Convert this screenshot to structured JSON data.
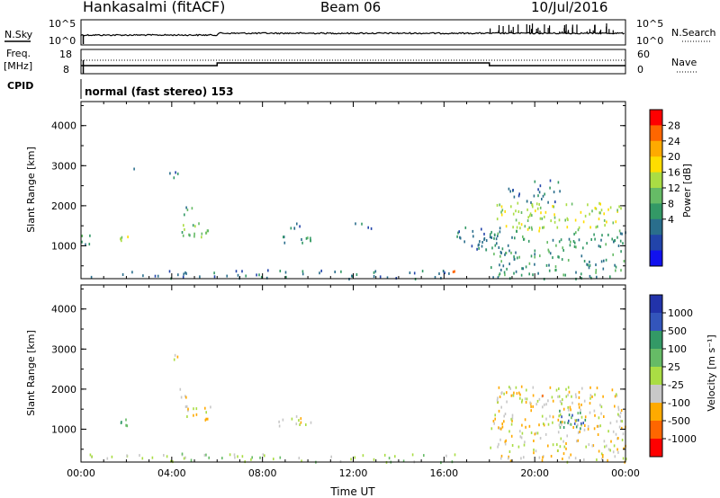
{
  "header": {
    "station": "Hankasalmi (fitACF)",
    "beam": "Beam 06",
    "date": "10/Jul/2016"
  },
  "status_panels": {
    "nsky_label": "N.Sky",
    "nsearch_label": "N.Search",
    "noise_ticks_left": [
      "10^5",
      "10^0"
    ],
    "noise_ticks_right": [
      "10^5",
      "10^0"
    ],
    "freq_label": "Freq.",
    "freq_unit": "[MHz]",
    "freq_ticks": [
      "18",
      "8"
    ],
    "nave_label": "Nave",
    "nave_ticks": [
      "60",
      "0"
    ],
    "cpid_label": "CPID",
    "cpid_value": "normal (fast stereo) 153"
  },
  "chart_data": [
    {
      "type": "heatmap",
      "name": "power",
      "ylabel": "Slant Range [km]",
      "ylim": [
        180,
        4600
      ],
      "y_ticks": [
        "4000",
        "3000",
        "2000",
        "1000"
      ],
      "xlim": [
        "00:00",
        "24:00"
      ],
      "colorbar": {
        "label": "Power [dB]",
        "ticks": [
          "28",
          "24",
          "20",
          "16",
          "12",
          "8",
          "4"
        ],
        "colors": [
          "#ff0000",
          "#ff6600",
          "#ffaa00",
          "#ffdd00",
          "#aadd44",
          "#66bb66",
          "#339966",
          "#2a6e8c",
          "#2244aa",
          "#1111ee"
        ]
      },
      "regions": [
        {
          "t0": 0.0,
          "t1": 16.5,
          "r0": 200,
          "r1": 420,
          "level": 7,
          "density": 0.35
        },
        {
          "t0": 0.0,
          "t1": 0.6,
          "r0": 1050,
          "r1": 1300,
          "level": 6,
          "density": 0.7
        },
        {
          "t0": 1.7,
          "t1": 2.1,
          "r0": 1000,
          "r1": 1350,
          "level": 4,
          "density": 0.8
        },
        {
          "t0": 2.3,
          "t1": 2.6,
          "r0": 2900,
          "r1": 3050,
          "level": 6,
          "density": 0.6
        },
        {
          "t0": 3.8,
          "t1": 4.3,
          "r0": 2700,
          "r1": 2950,
          "level": 7,
          "density": 0.7
        },
        {
          "t0": 4.4,
          "t1": 5.6,
          "r0": 1250,
          "r1": 1650,
          "level": 5,
          "density": 0.8
        },
        {
          "t0": 4.4,
          "t1": 5.1,
          "r0": 1800,
          "r1": 2000,
          "level": 6,
          "density": 0.7
        },
        {
          "t0": 8.7,
          "t1": 10.2,
          "r0": 1100,
          "r1": 1300,
          "level": 6,
          "density": 0.7
        },
        {
          "t0": 9.2,
          "t1": 10.2,
          "r0": 1450,
          "r1": 1650,
          "level": 7,
          "density": 0.6
        },
        {
          "t0": 12.0,
          "t1": 13.5,
          "r0": 1450,
          "r1": 1600,
          "level": 7,
          "density": 0.4
        },
        {
          "t0": 16.2,
          "t1": 16.5,
          "r0": 200,
          "r1": 400,
          "level": 0,
          "density": 0.9
        },
        {
          "t0": 16.5,
          "t1": 18.5,
          "r0": 900,
          "r1": 1500,
          "level": 7,
          "density": 0.6
        },
        {
          "t0": 18.0,
          "t1": 24.0,
          "r0": 200,
          "r1": 1400,
          "level": 6,
          "density": 0.45
        },
        {
          "t0": 18.3,
          "t1": 23.8,
          "r0": 1400,
          "r1": 2100,
          "level": 4,
          "density": 0.55
        },
        {
          "t0": 18.8,
          "t1": 21.2,
          "r0": 2100,
          "r1": 2700,
          "level": 7,
          "density": 0.4
        }
      ]
    },
    {
      "type": "heatmap",
      "name": "velocity",
      "ylabel": "Slant Range [km]",
      "xlabel": "Time UT",
      "ylim": [
        180,
        4600
      ],
      "y_ticks": [
        "4000",
        "3000",
        "2000",
        "1000"
      ],
      "x_ticks": [
        "00:00",
        "04:00",
        "08:00",
        "12:00",
        "16:00",
        "20:00",
        "00:00"
      ],
      "colorbar": {
        "label": "Velocity [m s⁻¹]",
        "ticks": [
          "1000",
          "500",
          "100",
          "25",
          "-25",
          "-100",
          "-500",
          "-1000"
        ],
        "colors": [
          "#2233aa",
          "#3355bb",
          "#339966",
          "#66bb66",
          "#aadd44",
          "#c8c8c8",
          "#ffaa00",
          "#ff6600",
          "#ff0000"
        ]
      },
      "regions": [
        {
          "t0": 0.0,
          "t1": 16.5,
          "r0": 200,
          "r1": 420,
          "level": 4,
          "density": 0.35
        },
        {
          "t0": 1.7,
          "t1": 2.1,
          "r0": 1000,
          "r1": 1350,
          "level": 3,
          "density": 0.8
        },
        {
          "t0": 4.3,
          "t1": 4.8,
          "r0": 1800,
          "r1": 2050,
          "level": 6,
          "density": 0.7
        },
        {
          "t0": 4.5,
          "t1": 5.7,
          "r0": 1250,
          "r1": 1650,
          "level": 5,
          "density": 0.7
        },
        {
          "t0": 3.8,
          "t1": 4.3,
          "r0": 2700,
          "r1": 2950,
          "level": 5,
          "density": 0.6
        },
        {
          "t0": 8.7,
          "t1": 10.2,
          "r0": 1100,
          "r1": 1350,
          "level": 5,
          "density": 0.7
        },
        {
          "t0": 18.0,
          "t1": 24.0,
          "r0": 200,
          "r1": 1400,
          "level": 5,
          "density": 0.5
        },
        {
          "t0": 18.3,
          "t1": 23.8,
          "r0": 1400,
          "r1": 2100,
          "level": 5,
          "density": 0.55
        },
        {
          "t0": 21.0,
          "t1": 22.2,
          "r0": 1000,
          "r1": 1500,
          "level": 2,
          "density": 0.8
        },
        {
          "t0": 18.5,
          "t1": 20.5,
          "r0": 1700,
          "r1": 2000,
          "level": 6,
          "density": 0.3
        }
      ]
    }
  ]
}
